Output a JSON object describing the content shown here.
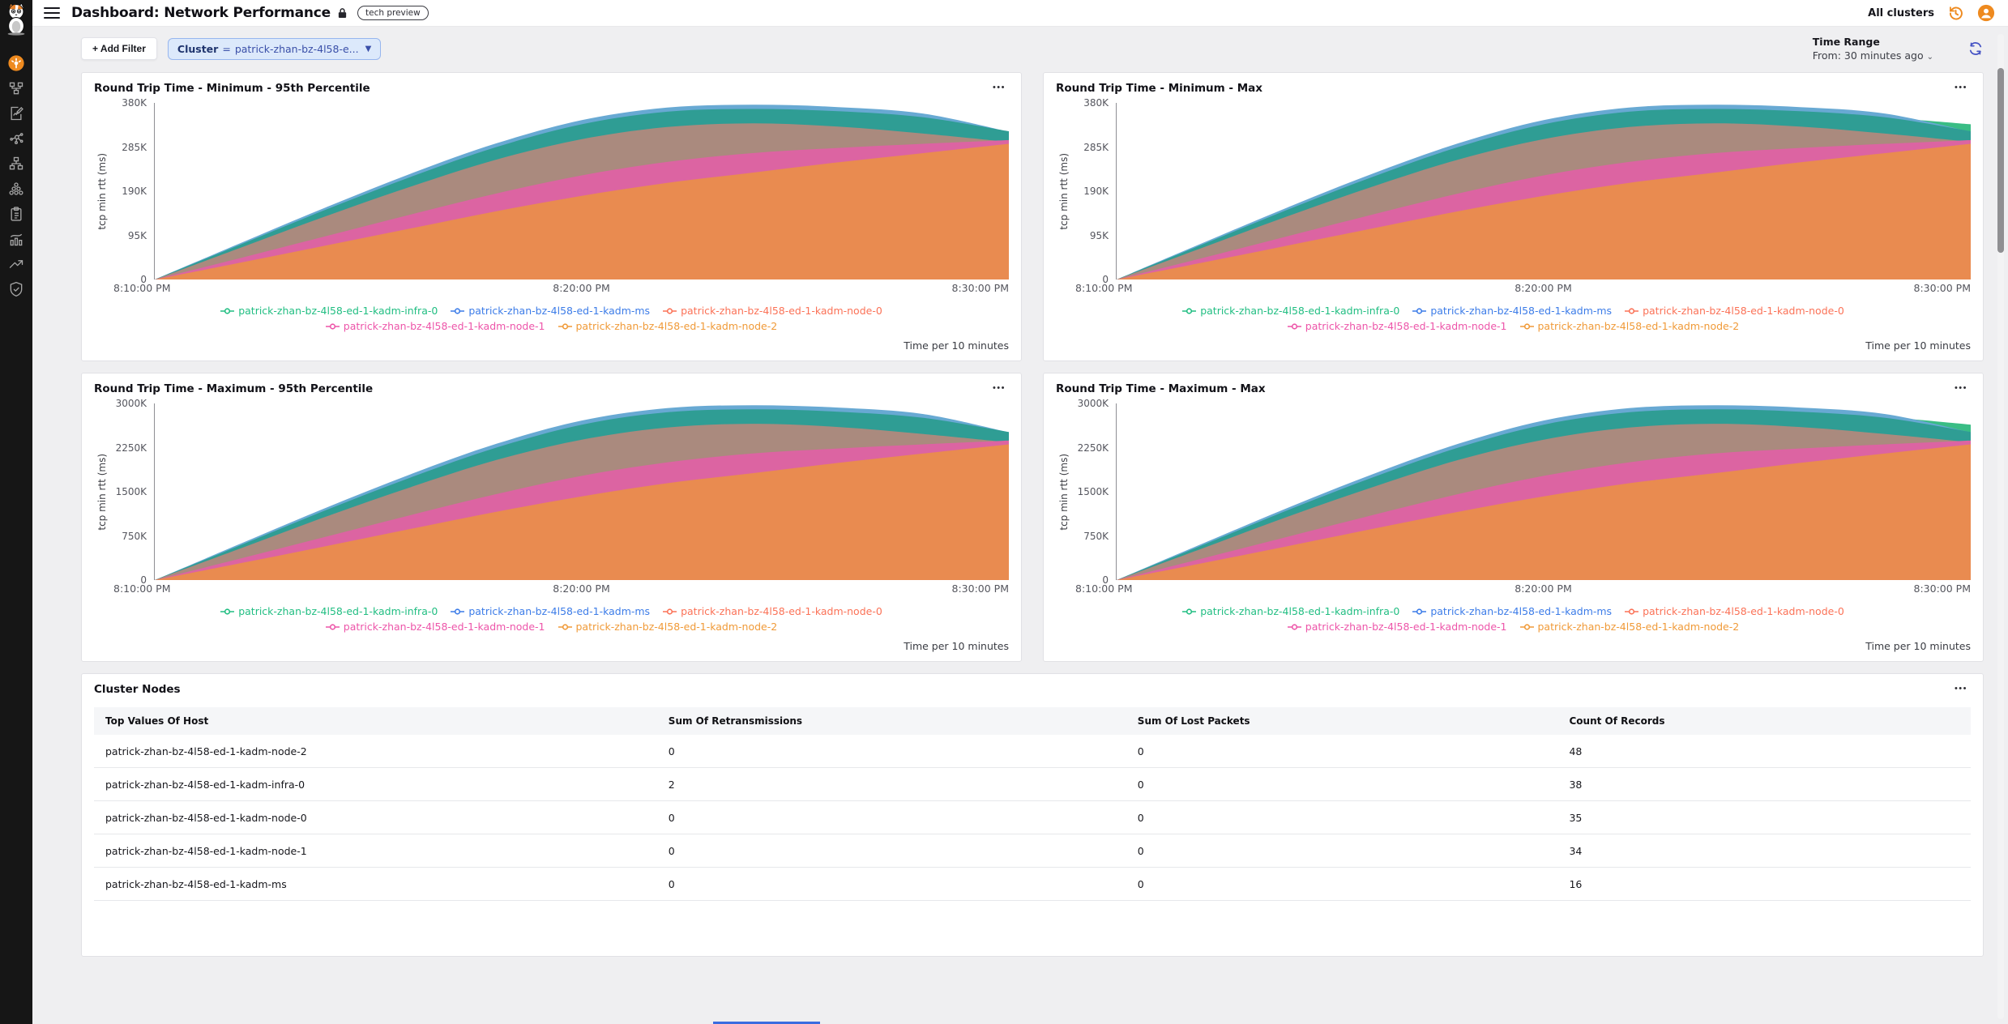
{
  "header": {
    "title": "Dashboard: Network Performance",
    "badge": "tech preview",
    "cluster_scope": "All clusters"
  },
  "filter_bar": {
    "add_filter_label": "+ Add Filter",
    "filter_pill": {
      "field": "Cluster",
      "operator": "=",
      "value": "patrick-zhan-bz-4l58-e..."
    },
    "time_range": {
      "label": "Time Range",
      "from": "From: 30 minutes ago"
    }
  },
  "sidebar": {
    "icons": [
      "cat-mascot-logo",
      "dashboard-gauge-icon",
      "topology-icon",
      "report-edit-icon",
      "graph-nodes-icon",
      "sitemap-icon",
      "cluster-group-icon",
      "clipboard-icon",
      "analytics-icon",
      "trend-arrow-icon",
      "shield-check-icon"
    ]
  },
  "colors": {
    "accent_orange": "#EE8A1F",
    "sidebar_bg": "#161616",
    "pill_bg": "#DCE9FB",
    "pill_border": "#97B6EE",
    "refresh_icon": "#4553C4"
  },
  "chart_data": [
    {
      "type": "area",
      "title": "Round Trip Time - Minimum - 95th Percentile",
      "ylabel": "tcp min rtt (ms)",
      "ymax_k": 380,
      "yticks": [
        "380K",
        "285K",
        "190K",
        "95K",
        "0"
      ],
      "xticks": [
        "8:10:00 PM",
        "8:20:00 PM",
        "8:30:00 PM"
      ],
      "x_minutes": [
        0,
        2,
        4,
        6,
        8,
        10,
        12,
        14,
        16,
        18,
        20
      ],
      "footer": "Time per 10 minutes",
      "legend": [
        {
          "label": "patrick-zhan-bz-4l58-ed-1-kadm-infra-0",
          "color": "#21BE82"
        },
        {
          "label": "patrick-zhan-bz-4l58-ed-1-kadm-ms",
          "color": "#3C7CE8"
        },
        {
          "label": "patrick-zhan-bz-4l58-ed-1-kadm-node-0",
          "color": "#FB7257"
        },
        {
          "label": "patrick-zhan-bz-4l58-ed-1-kadm-node-1",
          "color": "#ED55A9"
        },
        {
          "label": "patrick-zhan-bz-4l58-ed-1-kadm-node-2",
          "color": "#F09A38"
        }
      ],
      "layers": [
        {
          "name": "kadm-infra-0",
          "color": "#3ABD85",
          "values_k": [
            0,
            73,
            146,
            215,
            277,
            325,
            352,
            358,
            352,
            338,
            310
          ]
        },
        {
          "name": "kadm-ms",
          "color": "#68A9D3",
          "values_k": [
            0,
            78,
            155,
            228,
            293,
            343,
            370,
            376,
            371,
            357,
            318
          ]
        },
        {
          "name": "overlap-band",
          "color": "#2F9D94",
          "values_k": [
            0,
            75,
            150,
            221,
            285,
            334,
            361,
            367,
            362,
            349,
            319
          ]
        },
        {
          "name": "kadm-node-0",
          "color": "#AA8A7E",
          "values_k": [
            0,
            68,
            136,
            200,
            258,
            302,
            328,
            336,
            329,
            314,
            296
          ]
        },
        {
          "name": "kadm-node-1",
          "color": "#DC64A2",
          "values_k": [
            0,
            46,
            93,
            140,
            185,
            224,
            253,
            272,
            283,
            292,
            300
          ]
        },
        {
          "name": "kadm-node-2",
          "color": "#E98B50",
          "values_k": [
            0,
            36,
            73,
            110,
            147,
            180,
            208,
            230,
            252,
            272,
            292
          ]
        }
      ]
    },
    {
      "type": "area",
      "title": "Round Trip Time - Minimum - Max",
      "ylabel": "tcp min rtt (ms)",
      "ymax_k": 380,
      "yticks": [
        "380K",
        "285K",
        "190K",
        "95K",
        "0"
      ],
      "xticks": [
        "8:10:00 PM",
        "8:20:00 PM",
        "8:30:00 PM"
      ],
      "x_minutes": [
        0,
        2,
        4,
        6,
        8,
        10,
        12,
        14,
        16,
        18,
        20
      ],
      "footer": "Time per 10 minutes",
      "legend": [
        {
          "label": "patrick-zhan-bz-4l58-ed-1-kadm-infra-0",
          "color": "#21BE82"
        },
        {
          "label": "patrick-zhan-bz-4l58-ed-1-kadm-ms",
          "color": "#3C7CE8"
        },
        {
          "label": "patrick-zhan-bz-4l58-ed-1-kadm-node-0",
          "color": "#FB7257"
        },
        {
          "label": "patrick-zhan-bz-4l58-ed-1-kadm-node-1",
          "color": "#ED55A9"
        },
        {
          "label": "patrick-zhan-bz-4l58-ed-1-kadm-node-2",
          "color": "#F09A38"
        }
      ],
      "layers": [
        {
          "name": "kadm-infra-0",
          "color": "#3ABD85",
          "values_k": [
            0,
            73,
            146,
            215,
            277,
            325,
            352,
            358,
            354,
            348,
            334
          ]
        },
        {
          "name": "kadm-ms",
          "color": "#68A9D3",
          "values_k": [
            0,
            78,
            155,
            228,
            293,
            343,
            370,
            376,
            371,
            357,
            318
          ]
        },
        {
          "name": "overlap-band",
          "color": "#2F9D94",
          "values_k": [
            0,
            75,
            150,
            221,
            285,
            334,
            361,
            367,
            362,
            349,
            319
          ]
        },
        {
          "name": "kadm-node-0",
          "color": "#AA8A7E",
          "values_k": [
            0,
            68,
            136,
            200,
            258,
            302,
            328,
            336,
            329,
            314,
            296
          ]
        },
        {
          "name": "kadm-node-1",
          "color": "#DC64A2",
          "values_k": [
            0,
            46,
            93,
            140,
            185,
            224,
            253,
            272,
            283,
            292,
            300
          ]
        },
        {
          "name": "kadm-node-2",
          "color": "#E98B50",
          "values_k": [
            0,
            36,
            73,
            110,
            147,
            180,
            208,
            230,
            252,
            272,
            292
          ]
        }
      ]
    },
    {
      "type": "area",
      "title": "Round Trip Time - Maximum - 95th Percentile",
      "ylabel": "tcp min rtt (ms)",
      "ymax_k": 3000,
      "yticks": [
        "3000K",
        "2250K",
        "1500K",
        "750K",
        "0"
      ],
      "xticks": [
        "8:10:00 PM",
        "8:20:00 PM",
        "8:30:00 PM"
      ],
      "x_minutes": [
        0,
        2,
        4,
        6,
        8,
        10,
        12,
        14,
        16,
        18,
        20
      ],
      "footer": "Time per 10 minutes",
      "legend": [
        {
          "label": "patrick-zhan-bz-4l58-ed-1-kadm-infra-0",
          "color": "#21BE82"
        },
        {
          "label": "patrick-zhan-bz-4l58-ed-1-kadm-ms",
          "color": "#3C7CE8"
        },
        {
          "label": "patrick-zhan-bz-4l58-ed-1-kadm-node-0",
          "color": "#FB7257"
        },
        {
          "label": "patrick-zhan-bz-4l58-ed-1-kadm-node-1",
          "color": "#ED55A9"
        },
        {
          "label": "patrick-zhan-bz-4l58-ed-1-kadm-node-2",
          "color": "#F09A38"
        }
      ],
      "layers": [
        {
          "name": "kadm-infra-0",
          "color": "#3ABD85",
          "values_k": [
            0,
            575,
            1155,
            1700,
            2190,
            2570,
            2780,
            2830,
            2780,
            2670,
            2450
          ]
        },
        {
          "name": "kadm-ms",
          "color": "#68A9D3",
          "values_k": [
            0,
            615,
            1225,
            1800,
            2315,
            2710,
            2920,
            2970,
            2930,
            2820,
            2510
          ]
        },
        {
          "name": "overlap-band",
          "color": "#2F9D94",
          "values_k": [
            0,
            590,
            1185,
            1745,
            2250,
            2640,
            2850,
            2900,
            2860,
            2755,
            2515
          ]
        },
        {
          "name": "kadm-node-0",
          "color": "#AA8A7E",
          "values_k": [
            0,
            535,
            1075,
            1580,
            2040,
            2385,
            2590,
            2655,
            2600,
            2480,
            2340
          ]
        },
        {
          "name": "kadm-node-1",
          "color": "#DC64A2",
          "values_k": [
            0,
            365,
            735,
            1105,
            1460,
            1770,
            2000,
            2150,
            2235,
            2305,
            2370
          ]
        },
        {
          "name": "kadm-node-2",
          "color": "#E98B50",
          "values_k": [
            0,
            285,
            575,
            870,
            1160,
            1420,
            1645,
            1815,
            1990,
            2150,
            2305
          ]
        }
      ]
    },
    {
      "type": "area",
      "title": "Round Trip Time - Maximum - Max",
      "ylabel": "tcp min rtt (ms)",
      "ymax_k": 3000,
      "yticks": [
        "3000K",
        "2250K",
        "1500K",
        "750K",
        "0"
      ],
      "xticks": [
        "8:10:00 PM",
        "8:20:00 PM",
        "8:30:00 PM"
      ],
      "x_minutes": [
        0,
        2,
        4,
        6,
        8,
        10,
        12,
        14,
        16,
        18,
        20
      ],
      "footer": "Time per 10 minutes",
      "legend": [
        {
          "label": "patrick-zhan-bz-4l58-ed-1-kadm-infra-0",
          "color": "#21BE82"
        },
        {
          "label": "patrick-zhan-bz-4l58-ed-1-kadm-ms",
          "color": "#3C7CE8"
        },
        {
          "label": "patrick-zhan-bz-4l58-ed-1-kadm-node-0",
          "color": "#FB7257"
        },
        {
          "label": "patrick-zhan-bz-4l58-ed-1-kadm-node-1",
          "color": "#ED55A9"
        },
        {
          "label": "patrick-zhan-bz-4l58-ed-1-kadm-node-2",
          "color": "#F09A38"
        }
      ],
      "layers": [
        {
          "name": "kadm-infra-0",
          "color": "#3ABD85",
          "values_k": [
            0,
            575,
            1155,
            1700,
            2190,
            2570,
            2780,
            2830,
            2805,
            2765,
            2640
          ]
        },
        {
          "name": "kadm-ms",
          "color": "#68A9D3",
          "values_k": [
            0,
            615,
            1225,
            1800,
            2315,
            2710,
            2920,
            2970,
            2930,
            2820,
            2510
          ]
        },
        {
          "name": "overlap-band",
          "color": "#2F9D94",
          "values_k": [
            0,
            590,
            1185,
            1745,
            2250,
            2640,
            2850,
            2900,
            2860,
            2755,
            2515
          ]
        },
        {
          "name": "kadm-node-0",
          "color": "#AA8A7E",
          "values_k": [
            0,
            535,
            1075,
            1580,
            2040,
            2385,
            2590,
            2655,
            2600,
            2480,
            2340
          ]
        },
        {
          "name": "kadm-node-1",
          "color": "#DC64A2",
          "values_k": [
            0,
            365,
            735,
            1105,
            1460,
            1770,
            2000,
            2150,
            2235,
            2305,
            2370
          ]
        },
        {
          "name": "kadm-node-2",
          "color": "#E98B50",
          "values_k": [
            0,
            285,
            575,
            870,
            1160,
            1420,
            1645,
            1815,
            1990,
            2150,
            2305
          ]
        }
      ]
    }
  ],
  "table": {
    "title": "Cluster Nodes",
    "columns": [
      "Top Values Of Host",
      "Sum Of Retransmissions",
      "Sum Of Lost Packets",
      "Count Of Records"
    ],
    "rows": [
      [
        "patrick-zhan-bz-4l58-ed-1-kadm-node-2",
        "0",
        "0",
        "48"
      ],
      [
        "patrick-zhan-bz-4l58-ed-1-kadm-infra-0",
        "2",
        "0",
        "38"
      ],
      [
        "patrick-zhan-bz-4l58-ed-1-kadm-node-0",
        "0",
        "0",
        "35"
      ],
      [
        "patrick-zhan-bz-4l58-ed-1-kadm-node-1",
        "0",
        "0",
        "34"
      ],
      [
        "patrick-zhan-bz-4l58-ed-1-kadm-ms",
        "0",
        "0",
        "16"
      ]
    ]
  }
}
